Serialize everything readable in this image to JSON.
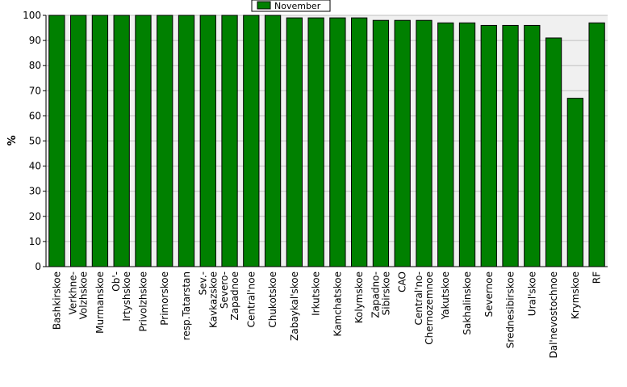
{
  "chart_data": {
    "type": "bar",
    "title": "",
    "xlabel": "",
    "ylabel": "%",
    "ylim": [
      0,
      100
    ],
    "yticks": [
      0,
      10,
      20,
      30,
      40,
      50,
      60,
      70,
      80,
      90,
      100
    ],
    "grid": true,
    "legend": "top-center",
    "categories": [
      [
        "Bashkirskoe"
      ],
      [
        "Verkhne-",
        "Volzhskoe"
      ],
      [
        "Murmanskoe"
      ],
      [
        "Ob'-",
        "Irtyshskoe"
      ],
      [
        "Privolzhskoe"
      ],
      [
        "Primorskoe"
      ],
      [
        "resp.Tatarstan"
      ],
      [
        "Sev.-",
        "Kavkazskoe"
      ],
      [
        "Severo-",
        "Zapadnoe"
      ],
      [
        "Central'noe"
      ],
      [
        "Chukotskoe"
      ],
      [
        "Zabaykal'skoe"
      ],
      [
        "Irkutskoe"
      ],
      [
        "Kamchatskoe"
      ],
      [
        "Kolymskoe"
      ],
      [
        "Zapadno-",
        "Sibirskoe"
      ],
      [
        "CAO"
      ],
      [
        "Central'no-",
        "Chernozemnoe"
      ],
      [
        "Yakutskoe"
      ],
      [
        "Sakhalinskoe"
      ],
      [
        "Severnoe"
      ],
      [
        "Srednesibirskoe"
      ],
      [
        "Ural'skoe"
      ],
      [
        "Dal'nevostochnoe"
      ],
      [
        "Krymskoe"
      ],
      [
        "RF"
      ]
    ],
    "series": [
      {
        "name": "November",
        "color": "#008000",
        "values": [
          100,
          100,
          100,
          100,
          100,
          100,
          100,
          100,
          100,
          100,
          100,
          99,
          99,
          99,
          99,
          98,
          98,
          98,
          97,
          97,
          96,
          96,
          96,
          91,
          67,
          97
        ]
      }
    ]
  },
  "colors": {
    "plot_background": "#f0f0f0",
    "grid": "#c0c0c0",
    "bar_outline": "#000000"
  }
}
